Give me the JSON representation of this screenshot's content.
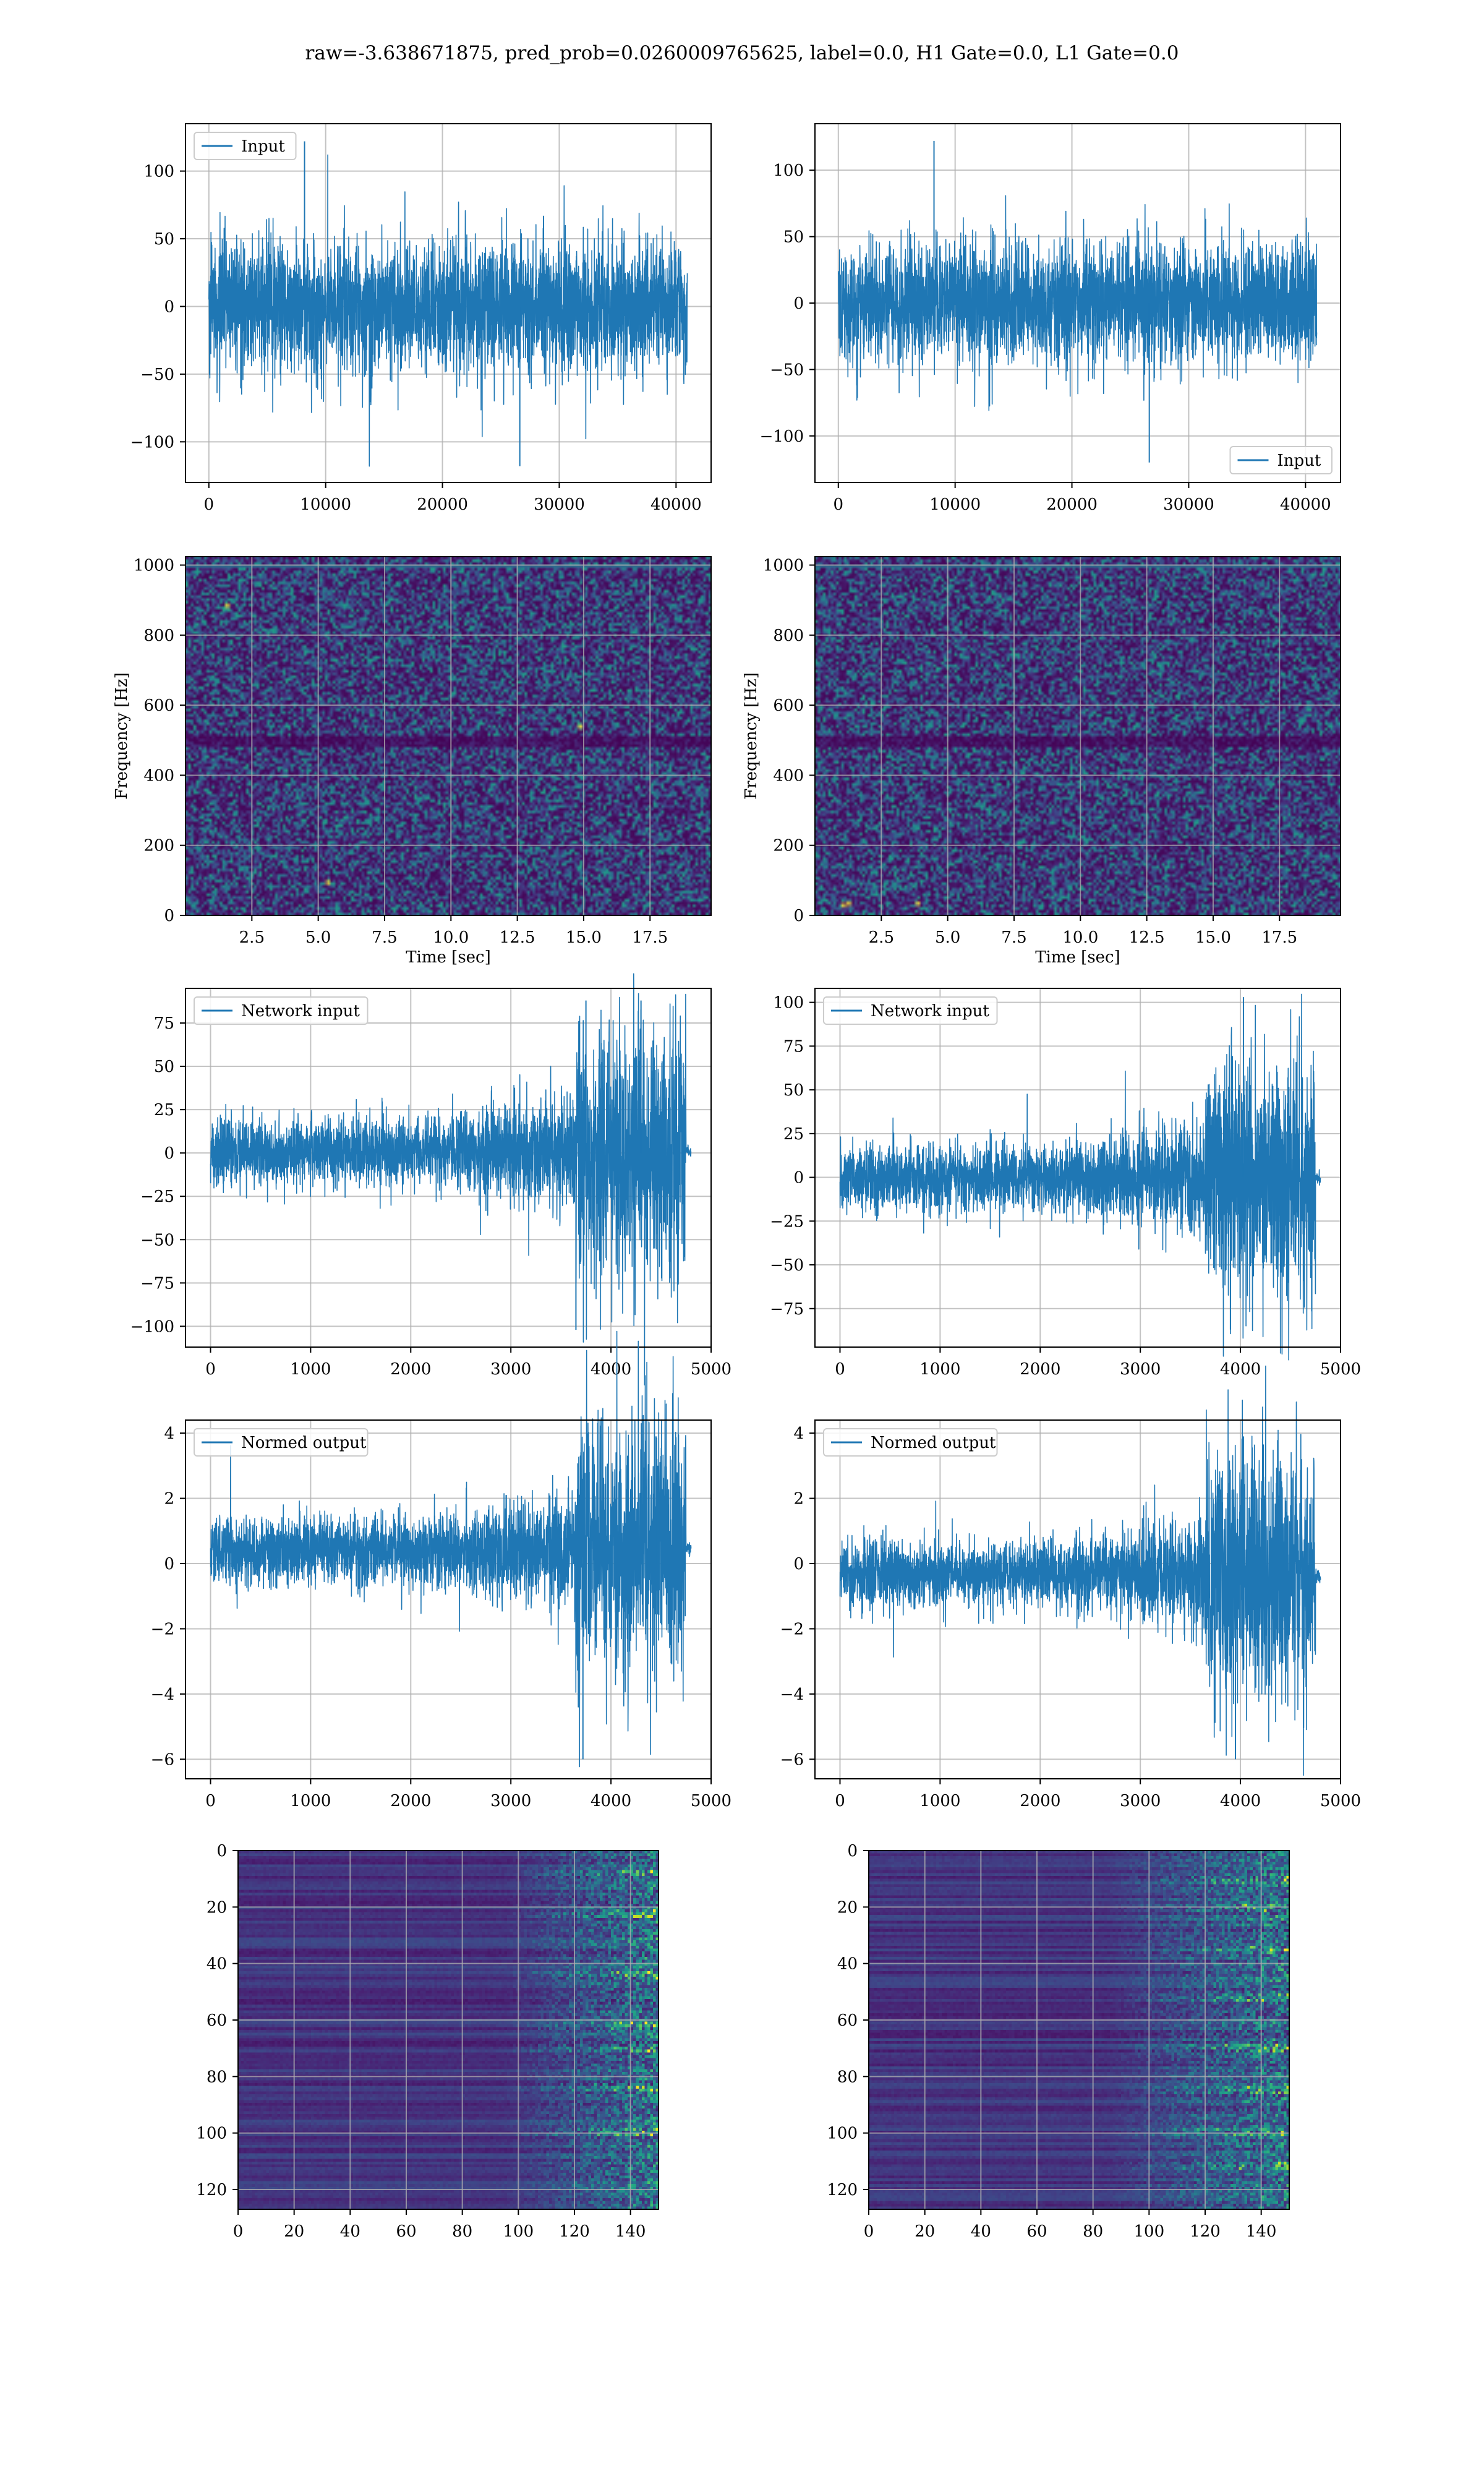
{
  "suptitle": "raw=-3.638671875, pred_prob=0.0260009765625, label=0.0, H1 Gate=0.0, L1 Gate=0.0",
  "colors": {
    "line": "#1f77b4",
    "grid": "#b0b0b0",
    "axes": "#000000"
  },
  "chart_data": [
    {
      "id": "input-h1",
      "type": "line",
      "title": "",
      "xlabel": "",
      "ylabel": "",
      "xlim": [
        -2000,
        43000
      ],
      "ylim": [
        -130,
        135
      ],
      "xticks": [
        0,
        10000,
        20000,
        30000,
        40000
      ],
      "yticks": [
        -100,
        -50,
        0,
        50,
        100
      ],
      "grid": true,
      "legend": "upper left",
      "series": [
        {
          "name": "Input",
          "n_points": 40960,
          "x_range": [
            0,
            40960
          ],
          "envelope": {
            "typical_amplitude": 62,
            "max": 122,
            "min": -118
          }
        }
      ]
    },
    {
      "id": "input-l1",
      "type": "line",
      "title": "",
      "xlabel": "",
      "ylabel": "",
      "xlim": [
        -2000,
        43000
      ],
      "ylim": [
        -135,
        135
      ],
      "xticks": [
        0,
        10000,
        20000,
        30000,
        40000
      ],
      "yticks": [
        -100,
        -50,
        0,
        50,
        100
      ],
      "grid": true,
      "legend": "lower right",
      "series": [
        {
          "name": "Input",
          "n_points": 40960,
          "x_range": [
            0,
            40960
          ],
          "envelope": {
            "typical_amplitude": 58,
            "max": 122,
            "min": -120
          }
        }
      ]
    },
    {
      "id": "spectrogram-h1",
      "type": "heatmap",
      "colormap": "viridis",
      "xlabel": "Time [sec]",
      "ylabel": "Frequency [Hz]",
      "xlim": [
        0,
        19.8
      ],
      "ylim": [
        0,
        1024
      ],
      "xticks": [
        2.5,
        5.0,
        7.5,
        10.0,
        12.5,
        15.0,
        17.5
      ],
      "yticks": [
        0,
        200,
        400,
        600,
        800,
        1000
      ],
      "grid": true,
      "features": {
        "dark_band_hz": 500,
        "top_line_hz": 1000,
        "bright_spots": [
          [
            5.3,
            100
          ],
          [
            14.8,
            545
          ],
          [
            1.5,
            890
          ]
        ]
      }
    },
    {
      "id": "spectrogram-l1",
      "type": "heatmap",
      "colormap": "viridis",
      "xlabel": "Time [sec]",
      "ylabel": "Frequency [Hz]",
      "xlim": [
        0,
        19.8
      ],
      "ylim": [
        0,
        1024
      ],
      "xticks": [
        2.5,
        5.0,
        7.5,
        10.0,
        12.5,
        15.0,
        17.5
      ],
      "yticks": [
        0,
        200,
        400,
        600,
        800,
        1000
      ],
      "grid": true,
      "features": {
        "dark_band_hz": 500,
        "top_line_hz": 1000,
        "bright_spots": [
          [
            1.2,
            40
          ],
          [
            3.8,
            40
          ],
          [
            1.0,
            35
          ]
        ]
      }
    },
    {
      "id": "network-input-h1",
      "type": "line",
      "title": "",
      "xlabel": "",
      "ylabel": "",
      "xlim": [
        -250,
        5000
      ],
      "ylim": [
        -112,
        95
      ],
      "xticks": [
        0,
        1000,
        2000,
        3000,
        4000,
        5000
      ],
      "yticks": [
        -100,
        -75,
        -50,
        -25,
        0,
        25,
        50,
        75
      ],
      "grid": true,
      "legend": "upper left",
      "series": [
        {
          "name": "Network input",
          "n_points": 4800,
          "x_range": [
            0,
            4800
          ],
          "envelope": {
            "flat_end": 4750,
            "tail_value": 1,
            "peaks": [
              [
                3750,
                88
              ],
              [
                3650,
                -102
              ],
              [
                4300,
                88
              ]
            ]
          }
        }
      ]
    },
    {
      "id": "network-input-l1",
      "type": "line",
      "title": "",
      "xlabel": "",
      "ylabel": "",
      "xlim": [
        -250,
        5000
      ],
      "ylim": [
        -97,
        108
      ],
      "xticks": [
        0,
        1000,
        2000,
        3000,
        4000,
        5000
      ],
      "yticks": [
        -75,
        -50,
        -25,
        0,
        25,
        50,
        75,
        100
      ],
      "grid": true,
      "legend": "upper left",
      "series": [
        {
          "name": "Network input",
          "n_points": 4800,
          "x_range": [
            0,
            4800
          ],
          "envelope": {
            "flat_end": 4750,
            "tail_value": 0,
            "peaks": [
              [
                4030,
                103
              ],
              [
                3900,
                -87
              ]
            ]
          }
        }
      ]
    },
    {
      "id": "normed-output-h1",
      "type": "line",
      "title": "",
      "xlabel": "",
      "ylabel": "",
      "xlim": [
        -250,
        5000
      ],
      "ylim": [
        -6.6,
        4.4
      ],
      "xticks": [
        0,
        1000,
        2000,
        3000,
        4000,
        5000
      ],
      "yticks": [
        -6,
        -4,
        -2,
        0,
        2,
        4
      ],
      "grid": true,
      "legend": "upper left",
      "series": [
        {
          "name": "Normed output",
          "n_points": 4800,
          "x_range": [
            0,
            4800
          ],
          "envelope": {
            "flat_end": 4750,
            "tail_value": 0.5,
            "peaks": [
              [
                3720,
                -6.0
              ],
              [
                3780,
                3.6
              ],
              [
                4450,
                3.9
              ]
            ]
          }
        }
      ]
    },
    {
      "id": "normed-output-l1",
      "type": "line",
      "title": "",
      "xlabel": "",
      "ylabel": "",
      "xlim": [
        -250,
        5000
      ],
      "ylim": [
        -6.6,
        4.4
      ],
      "xticks": [
        0,
        1000,
        2000,
        3000,
        4000,
        5000
      ],
      "yticks": [
        -6,
        -4,
        -2,
        0,
        2,
        4
      ],
      "grid": true,
      "legend": "upper left",
      "series": [
        {
          "name": "Normed output",
          "n_points": 4800,
          "x_range": [
            0,
            4800
          ],
          "envelope": {
            "flat_end": 4750,
            "tail_value": -0.4,
            "peaks": [
              [
                4030,
                3.9
              ],
              [
                3950,
                -6.0
              ]
            ]
          }
        }
      ]
    },
    {
      "id": "feature-map-h1",
      "type": "heatmap",
      "colormap": "viridis",
      "xlabel": "",
      "ylabel": "",
      "xlim": [
        0,
        150
      ],
      "ylim": [
        127,
        0
      ],
      "xticks": [
        0,
        20,
        40,
        60,
        80,
        100,
        120,
        140
      ],
      "yticks": [
        0,
        20,
        40,
        60,
        80,
        100,
        120
      ],
      "grid": true,
      "features": {
        "activity_starts_x": 95,
        "bright_rows": [
          8,
          22,
          44,
          62,
          70,
          84,
          100
        ]
      }
    },
    {
      "id": "feature-map-l1",
      "type": "heatmap",
      "colormap": "viridis",
      "xlabel": "",
      "ylabel": "",
      "xlim": [
        0,
        150
      ],
      "ylim": [
        127,
        0
      ],
      "xticks": [
        0,
        20,
        40,
        60,
        80,
        100,
        120,
        140
      ],
      "yticks": [
        0,
        20,
        40,
        60,
        80,
        100,
        120
      ],
      "grid": true,
      "features": {
        "activity_starts_x": 85,
        "bright_rows": [
          10,
          20,
          35,
          52,
          70,
          85,
          100,
          112
        ]
      }
    }
  ]
}
